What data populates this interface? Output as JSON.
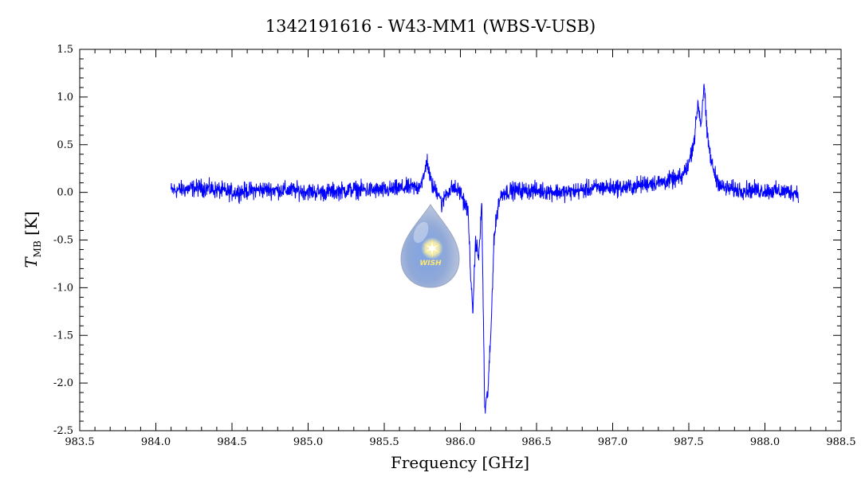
{
  "chart_data": {
    "type": "line",
    "title": "1342191616 - W43-MM1 (WBS-V-USB)",
    "xlabel": "Frequency [GHz]",
    "ylabel_main": "T",
    "ylabel_sub": "MB",
    "ylabel_unit": "[K]",
    "xlim": [
      983.5,
      988.5
    ],
    "ylim": [
      -2.5,
      1.5
    ],
    "xticks": [
      "983.5",
      "984.0",
      "984.5",
      "985.0",
      "985.5",
      "986.0",
      "986.5",
      "987.0",
      "987.5",
      "988.0",
      "988.5"
    ],
    "yticks": [
      "1.5",
      "1.0",
      "0.5",
      "0.0",
      "-0.5",
      "-1.0",
      "-1.5",
      "-2.0",
      "-2.5"
    ],
    "grid": false,
    "line_color": "#0000ff",
    "series": [
      {
        "x": [
          984.1,
          984.3,
          984.5,
          984.7,
          984.9,
          985.1,
          985.3,
          985.5,
          985.65,
          985.72,
          985.76,
          985.78,
          985.8,
          985.82,
          985.86,
          985.88,
          985.9,
          985.95,
          986.0,
          986.05,
          986.08,
          986.1,
          986.12,
          986.14,
          986.16,
          986.18,
          986.2,
          986.22,
          986.25,
          986.28,
          986.35,
          986.5,
          986.7,
          986.9,
          987.1,
          987.25,
          987.3,
          987.45,
          987.5,
          987.54,
          987.56,
          987.58,
          987.6,
          987.62,
          987.65,
          987.68,
          987.72,
          987.8,
          988.0,
          988.22
        ],
        "y": [
          0.02,
          0.05,
          0.0,
          0.03,
          0.02,
          0.0,
          0.03,
          0.02,
          0.05,
          0.05,
          0.15,
          0.35,
          0.15,
          0.05,
          0.0,
          -0.15,
          -0.02,
          0.05,
          0.0,
          -0.2,
          -1.3,
          -0.5,
          -0.7,
          -0.1,
          -2.3,
          -2.1,
          -1.5,
          -0.5,
          -0.1,
          0.0,
          0.02,
          0.02,
          0.0,
          0.05,
          0.05,
          0.1,
          0.1,
          0.15,
          0.3,
          0.6,
          0.95,
          0.7,
          1.15,
          0.6,
          0.3,
          0.15,
          0.05,
          0.03,
          0.02,
          0.0
        ]
      }
    ]
  },
  "logo": {
    "text": "WISH"
  }
}
